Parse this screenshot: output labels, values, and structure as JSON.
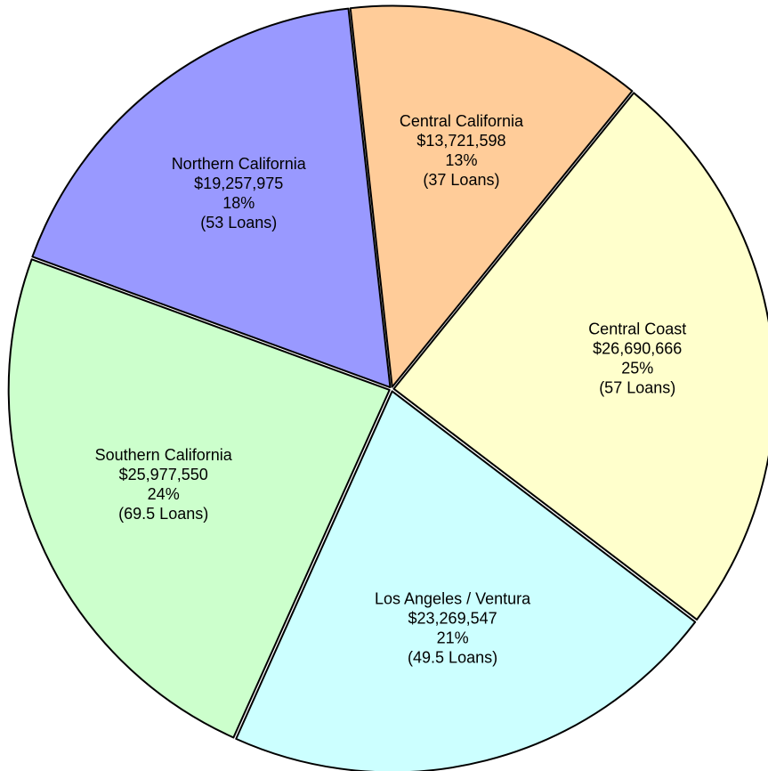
{
  "chart_data": {
    "type": "pie",
    "categories": [
      "Central California",
      "Central Coast",
      "Los Angeles / Ventura",
      "Southern California",
      "Northern California"
    ],
    "values": [
      13721598,
      26690666,
      23269547,
      25977550,
      19257975
    ],
    "value_labels": [
      "$13,721,598",
      "$26,690,666",
      "$23,269,547",
      "$25,977,550",
      "$19,257,975"
    ],
    "percents": [
      13,
      25,
      21,
      24,
      18
    ],
    "percent_labels": [
      "13%",
      "25%",
      "21%",
      "24%",
      "18%"
    ],
    "loans": [
      37,
      57,
      49.5,
      69.5,
      53
    ],
    "loan_labels": [
      "(37 Loans)",
      "(57 Loans)",
      "(49.5 Loans)",
      "(69.5 Loans)",
      "(53 Loans)"
    ],
    "colors": [
      "#ffcc99",
      "#ffffcc",
      "#ccffff",
      "#ccffcc",
      "#9999ff"
    ]
  }
}
